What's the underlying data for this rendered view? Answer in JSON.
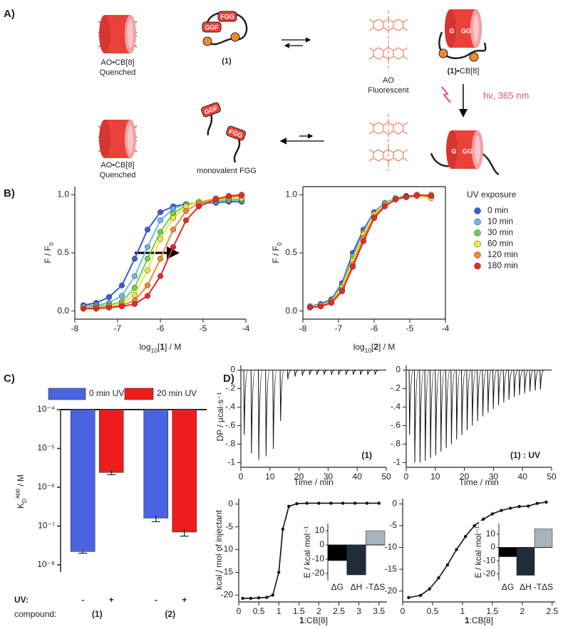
{
  "panel_labels": [
    "A)",
    "B)",
    "C)",
    "D)"
  ],
  "panel_a": {
    "top_left": {
      "label": "AO•CB[8]",
      "state": "Quenched"
    },
    "peptide": {
      "label": "(1)",
      "tags": [
        "FGG",
        "GGF"
      ]
    },
    "ao": {
      "label": "AO",
      "state": "Fluorescent"
    },
    "complex": {
      "label": [
        "(1)",
        "•CB[8]"
      ],
      "tags": [
        "G",
        "GG"
      ]
    },
    "light": "hν, 365 nm",
    "bottom_left": {
      "label": "AO•CB[8]",
      "state": "Quenched"
    },
    "monovalent": {
      "label": "monovalent FGG",
      "tags": [
        "GGF",
        "FGG"
      ]
    },
    "cleaved": {
      "tags": [
        "G",
        "GG"
      ]
    }
  },
  "chart_data": [
    {
      "type": "line",
      "x": [
        -7.8,
        -7.5,
        -7.2,
        -6.9,
        -6.6,
        -6.3,
        -6.0,
        -5.7,
        -5.4,
        -5.1,
        -4.7,
        -4.4,
        -4.1
      ],
      "series": [
        {
          "name": "0 min",
          "color": "#3a5bd9",
          "values": [
            0.05,
            0.07,
            0.12,
            0.22,
            0.45,
            0.7,
            0.85,
            0.9,
            0.92,
            0.93,
            0.93,
            0.94,
            0.94
          ]
        },
        {
          "name": "10 min",
          "color": "#6fb7e0",
          "values": [
            0.04,
            0.05,
            0.07,
            0.13,
            0.3,
            0.55,
            0.78,
            0.88,
            0.92,
            0.93,
            0.94,
            0.95,
            0.95
          ]
        },
        {
          "name": "30 min",
          "color": "#6fd14a",
          "values": [
            0.03,
            0.04,
            0.05,
            0.08,
            0.2,
            0.45,
            0.68,
            0.84,
            0.91,
            0.94,
            0.95,
            0.96,
            0.96
          ]
        },
        {
          "name": "60 min",
          "color": "#f2e63a",
          "values": [
            0.03,
            0.03,
            0.04,
            0.06,
            0.14,
            0.35,
            0.62,
            0.8,
            0.9,
            0.94,
            0.96,
            0.97,
            0.97
          ]
        },
        {
          "name": "120 min",
          "color": "#f58a2b",
          "values": [
            0.02,
            0.03,
            0.03,
            0.05,
            0.09,
            0.22,
            0.45,
            0.7,
            0.86,
            0.93,
            0.97,
            0.98,
            0.99
          ]
        },
        {
          "name": "180 min",
          "color": "#e8282b",
          "values": [
            0.02,
            0.02,
            0.03,
            0.04,
            0.06,
            0.13,
            0.3,
            0.55,
            0.78,
            0.9,
            0.96,
            0.99,
            1.0
          ]
        }
      ],
      "legend_title": "UV exposure",
      "xlim": [
        -8,
        -4
      ],
      "xticks": [
        -8,
        -7,
        -6,
        -5,
        -4
      ],
      "ylim": [
        -0.07,
        1.07
      ],
      "yticks": [
        {
          "value": 0,
          "label": "0.0"
        },
        {
          "value": 0.5,
          "label": "0.5"
        },
        {
          "value": 1,
          "label": "1.0"
        }
      ],
      "xlabel": [
        "log",
        "10",
        "[",
        "1",
        "] / M"
      ],
      "ylabel": [
        "F / F",
        "0"
      ]
    },
    {
      "type": "line",
      "x": [
        -7.8,
        -7.5,
        -7.2,
        -6.9,
        -6.6,
        -6.3,
        -6.0,
        -5.7,
        -5.4,
        -5.1,
        -4.8,
        -4.4
      ],
      "series": [
        {
          "color": "#3a5bd9",
          "values": [
            0.04,
            0.06,
            0.1,
            0.24,
            0.5,
            0.7,
            0.85,
            0.93,
            0.97,
            0.99,
            0.99,
            0.98
          ]
        },
        {
          "color": "#6fb7e0",
          "values": [
            0.04,
            0.05,
            0.09,
            0.22,
            0.47,
            0.68,
            0.84,
            0.93,
            0.97,
            0.98,
            0.99,
            0.98
          ]
        },
        {
          "color": "#6fd14a",
          "values": [
            0.03,
            0.05,
            0.09,
            0.21,
            0.45,
            0.67,
            0.83,
            0.92,
            0.97,
            0.98,
            0.99,
            0.99
          ]
        },
        {
          "color": "#f2e63a",
          "values": [
            0.03,
            0.05,
            0.08,
            0.2,
            0.43,
            0.66,
            0.83,
            0.92,
            0.96,
            0.98,
            0.99,
            0.97
          ]
        },
        {
          "color": "#f58a2b",
          "values": [
            0.03,
            0.04,
            0.08,
            0.18,
            0.4,
            0.63,
            0.81,
            0.91,
            0.96,
            0.98,
            0.99,
            1.0
          ]
        },
        {
          "color": "#e8282b",
          "values": [
            0.03,
            0.04,
            0.07,
            0.17,
            0.38,
            0.6,
            0.8,
            0.9,
            0.96,
            0.98,
            1.0,
            0.99
          ]
        }
      ],
      "xlim": [
        -8,
        -4
      ],
      "xticks": [
        -8,
        -7,
        -6,
        -5,
        -4
      ],
      "ylim": [
        -0.07,
        1.07
      ],
      "yticks": [
        {
          "value": 0,
          "label": "0.0"
        },
        {
          "value": 0.5,
          "label": "0.5"
        },
        {
          "value": 1,
          "label": "1.0"
        }
      ],
      "xlabel": [
        "log",
        "10",
        "[",
        "2",
        "] / M"
      ],
      "ylabel": [
        "F / F",
        "0"
      ]
    },
    {
      "type": "bar",
      "log_y": true,
      "categories": [
        "(1)",
        "(2)"
      ],
      "series": [
        {
          "name": "0 min  UV",
          "color": "#4a63e0",
          "values": [
            2.2e-08,
            1.6e-07
          ],
          "errors": [
            2e-09,
            3e-08
          ]
        },
        {
          "name": "20 min  UV",
          "color": "#ee1c1c",
          "values": [
            2.4e-06,
            7e-08
          ],
          "errors": [
            3e-07,
            1.5e-08
          ]
        }
      ],
      "ylim": [
        1e-08,
        0.0001
      ],
      "yticks": [
        {
          "value": 1e-08,
          "label": "10⁻⁸"
        },
        {
          "value": 1e-07,
          "label": "10⁻⁷"
        },
        {
          "value": 1e-06,
          "label": "10⁻⁶"
        },
        {
          "value": 1e-05,
          "label": "10⁻⁵"
        },
        {
          "value": 0.0001,
          "label": "10⁻⁴"
        }
      ],
      "ylabel": [
        "K",
        "D",
        "app",
        " / M"
      ],
      "uv_label": "UV:",
      "uv_signs": [
        [
          "-",
          "+"
        ],
        [
          "-",
          "+"
        ]
      ],
      "category_label": "compound:"
    },
    {
      "type": "spike",
      "x": [
        1,
        3.5,
        6,
        8.5,
        11,
        13.5,
        16,
        18.5,
        21,
        23.5,
        26,
        28.5,
        31,
        33.5,
        36,
        38.5,
        41,
        43.5,
        46
      ],
      "values": [
        -0.7,
        -0.9,
        -0.97,
        -0.93,
        -0.85,
        -0.55,
        -0.1,
        -0.07,
        -0.06,
        -0.05,
        -0.05,
        -0.05,
        -0.05,
        -0.05,
        -0.05,
        -0.05,
        -0.05,
        -0.05,
        -0.05
      ],
      "xlim": [
        0,
        50
      ],
      "xticks": [
        0,
        10,
        20,
        30,
        40,
        50
      ],
      "ylim": [
        -1.05,
        0.05
      ],
      "yticks": [
        0,
        {
          "value": -0.2,
          "label": "-.2"
        },
        {
          "value": -0.4,
          "label": "-.4"
        },
        {
          "value": -0.6,
          "label": "-.6"
        },
        {
          "value": -0.8,
          "label": "-.8"
        },
        -1
      ],
      "xlabel": "Time / min",
      "ylabel": "DP / µcal·s⁻¹",
      "annotation": "(1)"
    },
    {
      "type": "spike",
      "x": [
        1,
        2.8,
        4.6,
        6.4,
        8.2,
        10,
        11.8,
        13.6,
        15.4,
        17.2,
        19,
        20.8,
        22.6,
        24.4,
        26.2,
        28,
        29.8,
        31.6,
        33.4,
        35.2,
        37,
        38.8,
        40.6,
        42.4,
        44.2,
        46
      ],
      "values": [
        -0.7,
        -1.0,
        -1.0,
        -0.98,
        -0.95,
        -0.92,
        -0.88,
        -0.84,
        -0.8,
        -0.75,
        -0.7,
        -0.65,
        -0.6,
        -0.55,
        -0.5,
        -0.46,
        -0.42,
        -0.38,
        -0.35,
        -0.32,
        -0.29,
        -0.27,
        -0.25,
        -0.23,
        -0.22,
        -0.21
      ],
      "xlim": [
        0,
        50
      ],
      "xticks": [
        0,
        10,
        20,
        30,
        40,
        50
      ],
      "ylim": [
        -1.05,
        0.05
      ],
      "yticks": [
        0,
        {
          "value": -0.2,
          "label": "-.2"
        },
        {
          "value": -0.4,
          "label": "-.4"
        },
        {
          "value": -0.6,
          "label": "-.6"
        },
        {
          "value": -0.8,
          "label": "-.8"
        },
        -1
      ],
      "xlabel": "Time / min",
      "annotation": "(1) : UV"
    },
    {
      "type": "scatter",
      "x": [
        0.1,
        0.3,
        0.5,
        0.7,
        0.85,
        1.0,
        1.1,
        1.25,
        1.45,
        1.7,
        2.0,
        2.3,
        2.6,
        2.9,
        3.2,
        3.5
      ],
      "values": [
        -20.7,
        -20.7,
        -20.6,
        -20.5,
        -20,
        -15,
        -5.5,
        -0.5,
        0.1,
        0.2,
        0.2,
        0.2,
        0.2,
        0.2,
        0.2,
        0.2
      ],
      "xlim": [
        0,
        3.7
      ],
      "xticks": [
        0,
        0.5,
        1,
        1.5,
        2,
        2.5,
        3,
        3.5
      ],
      "ylim": [
        -21.5,
        1.2
      ],
      "yticks": [
        0,
        -5,
        -10,
        -15,
        -20
      ],
      "xlabel": [
        "1",
        ":CB[8]"
      ],
      "ylabel": "kcal / mol of injectant",
      "inset": {
        "type": "bar",
        "categories": [
          "ΔG",
          "ΔH",
          "-TΔS"
        ],
        "values": [
          -11,
          -21,
          10
        ],
        "colors": [
          "#000000",
          "#1f2d3a",
          "#a6b3b8"
        ],
        "ylim": [
          -25,
          15
        ],
        "yticks": [
          -20,
          -10,
          0,
          10
        ],
        "ylabel": "E / kcal·mol⁻¹"
      }
    },
    {
      "type": "scatter",
      "x": [
        0.1,
        0.3,
        0.45,
        0.6,
        0.75,
        0.9,
        1.05,
        1.2,
        1.35,
        1.5,
        1.65,
        1.8,
        1.95,
        2.1,
        2.25,
        2.4
      ],
      "values": [
        -21.5,
        -21,
        -19.5,
        -17,
        -14,
        -10.5,
        -7.5,
        -5,
        -3.5,
        -2.3,
        -1.5,
        -1,
        -0.6,
        -0.5,
        0.1,
        0.4
      ],
      "xlim": [
        0,
        2.55
      ],
      "xticks": [
        0,
        0.5,
        1,
        1.5,
        2,
        2.5
      ],
      "ylim": [
        -22.5,
        1.2
      ],
      "yticks": [
        0,
        -5,
        -10,
        -15,
        -20
      ],
      "xlabel": [
        "1",
        ":CB[8]"
      ],
      "inset": {
        "type": "bar",
        "categories": [
          "ΔG",
          "ΔH",
          "-TΔS"
        ],
        "values": [
          -7,
          -21,
          14
        ],
        "colors": [
          "#000000",
          "#1f2d3a",
          "#a6b3b8"
        ],
        "ylim": [
          -25,
          18
        ],
        "yticks": [
          -20,
          -10,
          0,
          10
        ],
        "ylabel": "E / kcal·mol⁻¹"
      }
    }
  ]
}
